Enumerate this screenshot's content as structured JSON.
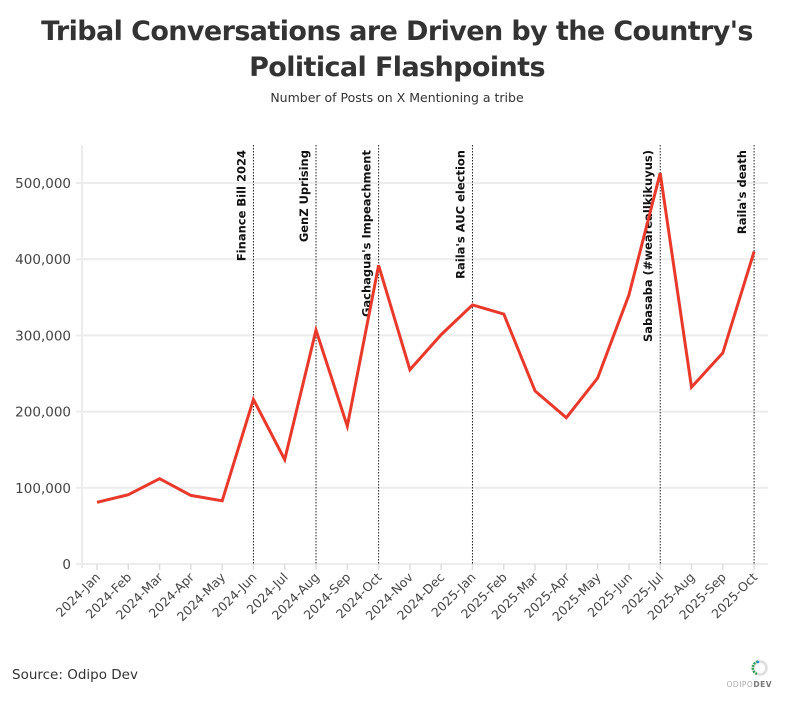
{
  "header": {
    "title_line1": "Tribal Conversations are Driven by the Country's",
    "title_line2": "Political Flashpoints",
    "subtitle": "Number of Posts on X Mentioning a tribe"
  },
  "footer": {
    "source": "Source: Odipo Dev",
    "logo_text_light": "ODIPO",
    "logo_text_bold": "DEV"
  },
  "colors": {
    "line": "#e8392b",
    "grid": "#ececec",
    "annotation_line": "#222222",
    "text": "#333333"
  },
  "chart_data": {
    "type": "line",
    "title": "Tribal Conversations are Driven by the Country's Political Flashpoints",
    "subtitle": "Number of Posts on X Mentioning a tribe",
    "xlabel": "",
    "ylabel": "",
    "ylim": [
      0,
      550000
    ],
    "yticks": [
      0,
      100000,
      200000,
      300000,
      400000,
      500000
    ],
    "ytick_labels": [
      "0",
      "100,000",
      "200,000",
      "300,000",
      "400,000",
      "500,000"
    ],
    "grid": true,
    "legend": "none",
    "categories": [
      "2024-Jan",
      "2024-Feb",
      "2024-Mar",
      "2024-Apr",
      "2024-May",
      "2024-Jun",
      "2024-Jul",
      "2024-Aug",
      "2024-Sep",
      "2024-Oct",
      "2024-Nov",
      "2024-Dec",
      "2025-Jan",
      "2025-Feb",
      "2025-Mar",
      "2025-Apr",
      "2025-May",
      "2025-Jun",
      "2025-Jul",
      "2025-Aug",
      "2025-Sep",
      "2025-Oct"
    ],
    "series": [
      {
        "name": "Posts mentioning a tribe",
        "values": [
          81000,
          91000,
          112000,
          90000,
          83000,
          216000,
          137000,
          307000,
          181000,
          392000,
          255000,
          301000,
          340000,
          328000,
          227000,
          192000,
          244000,
          353000,
          513000,
          232000,
          277000,
          410000
        ]
      }
    ],
    "annotations": [
      {
        "category": "2024-Jun",
        "label": "Finance Bill 2024"
      },
      {
        "category": "2024-Aug",
        "label": "GenZ Uprising"
      },
      {
        "category": "2024-Oct",
        "label": "Gachagua's Impeachment"
      },
      {
        "category": "2025-Jan",
        "label": "Raila's AUC election"
      },
      {
        "category": "2025-Jul",
        "label": "Sabasaba (#weareallkikuyus)"
      },
      {
        "category": "2025-Oct",
        "label": "Raila's death"
      }
    ]
  }
}
